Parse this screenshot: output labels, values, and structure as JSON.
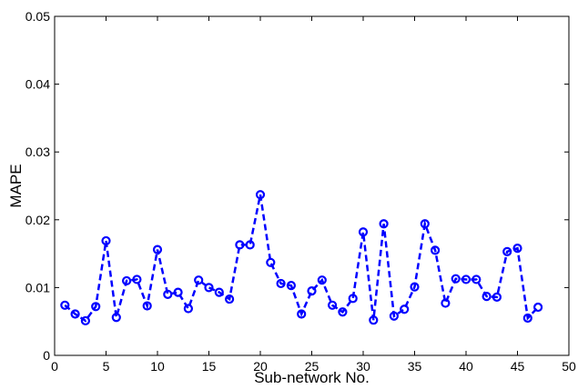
{
  "chart_data": {
    "type": "line",
    "title": "",
    "xlabel": "Sub-network No.",
    "ylabel": "MAPE",
    "xlim": [
      0,
      50
    ],
    "ylim": [
      0,
      0.05
    ],
    "xticks": [
      0,
      5,
      10,
      15,
      20,
      25,
      30,
      35,
      40,
      45,
      50
    ],
    "yticks": [
      0,
      0.01,
      0.02,
      0.03,
      0.04,
      0.05
    ],
    "xtick_labels": [
      "0",
      "5",
      "10",
      "15",
      "20",
      "25",
      "30",
      "35",
      "40",
      "45",
      "50"
    ],
    "ytick_labels": [
      "0",
      "0.01",
      "0.02",
      "0.03",
      "0.04",
      "0.05"
    ],
    "grid": false,
    "series": [
      {
        "color": "#0000ff",
        "line_style": "dashed",
        "marker": "circle",
        "x": [
          1,
          2,
          3,
          4,
          5,
          6,
          7,
          8,
          9,
          10,
          11,
          12,
          13,
          14,
          15,
          16,
          17,
          18,
          19,
          20,
          21,
          22,
          23,
          24,
          25,
          26,
          27,
          28,
          29,
          30,
          31,
          32,
          33,
          34,
          35,
          36,
          37,
          38,
          39,
          40,
          41,
          42,
          43,
          44,
          45,
          46,
          47
        ],
        "y": [
          0.0074,
          0.0061,
          0.0051,
          0.0072,
          0.0169,
          0.0056,
          0.011,
          0.0112,
          0.0073,
          0.0156,
          0.009,
          0.0093,
          0.0069,
          0.0111,
          0.01,
          0.0093,
          0.0083,
          0.0163,
          0.0163,
          0.0237,
          0.0137,
          0.0106,
          0.0103,
          0.0061,
          0.0095,
          0.0111,
          0.0074,
          0.0064,
          0.0084,
          0.0182,
          0.0052,
          0.0194,
          0.0058,
          0.0068,
          0.0101,
          0.0194,
          0.0155,
          0.0077,
          0.0113,
          0.0112,
          0.0112,
          0.0087,
          0.0086,
          0.0153,
          0.0158,
          0.0055,
          0.0071
        ]
      }
    ]
  }
}
